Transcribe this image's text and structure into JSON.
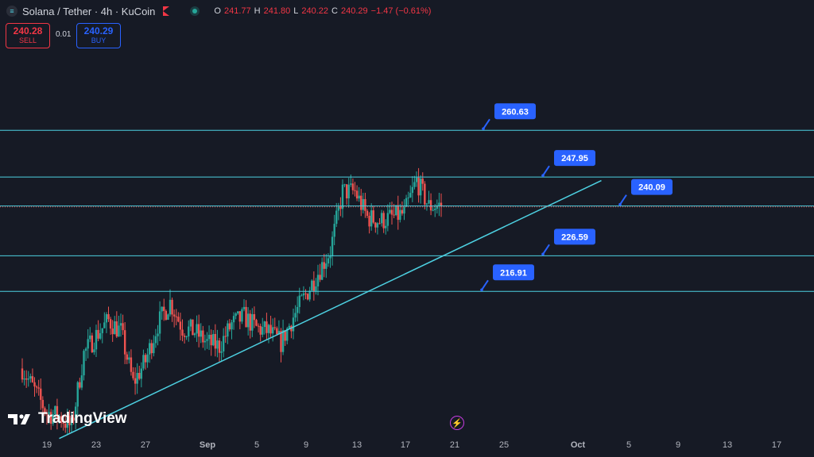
{
  "header": {
    "title": "Solana / Tether · 4h · KuCoin",
    "ohlc": {
      "o_label": "O",
      "o": "241.77",
      "h_label": "H",
      "h": "241.80",
      "l_label": "L",
      "l": "240.22",
      "c_label": "C",
      "c": "240.29",
      "change": "−1.47 (−0.61%)"
    }
  },
  "trade": {
    "sell_price": "240.28",
    "sell_label": "SELL",
    "spread": "0.01",
    "buy_price": "240.29",
    "buy_label": "BUY"
  },
  "branding": {
    "logo_text": "TradingView"
  },
  "colors": {
    "background": "#161a25",
    "up": "#26a69a",
    "down": "#ef5350",
    "level_line": "#4dd0e1",
    "label_bg": "#2962ff",
    "axis_text": "#b2b5be"
  },
  "chart_data": {
    "type": "line",
    "chart_subtype": "candlestick",
    "symbol": "Solana / Tether",
    "interval": "4h",
    "exchange": "KuCoin",
    "x_ticks": [
      "19",
      "23",
      "27",
      "Sep",
      "5",
      "9",
      "13",
      "17",
      "21",
      "25",
      "Oct",
      "5",
      "9",
      "13",
      "17"
    ],
    "ylim": [
      178,
      296
    ],
    "grid": false,
    "horizontal_levels": [
      {
        "label": "260.63",
        "value": 260.63
      },
      {
        "label": "247.95",
        "value": 247.95
      },
      {
        "label": "240.09",
        "value": 240.09
      },
      {
        "label": "226.59",
        "value": 226.59
      },
      {
        "label": "216.91",
        "value": 216.91
      }
    ],
    "trendline": {
      "start": {
        "x": "Aug 20",
        "y": 177
      },
      "end": {
        "x": "Oct 3",
        "y": 247
      }
    },
    "close_series": [
      {
        "x": "Aug 17",
        "y": 196
      },
      {
        "x": "Aug 18",
        "y": 190
      },
      {
        "x": "Aug 19",
        "y": 184
      },
      {
        "x": "Aug 20",
        "y": 183
      },
      {
        "x": "Aug 21",
        "y": 180
      },
      {
        "x": "Aug 22",
        "y": 200
      },
      {
        "x": "Aug 23",
        "y": 205
      },
      {
        "x": "Aug 24",
        "y": 209
      },
      {
        "x": "Aug 25",
        "y": 206
      },
      {
        "x": "Aug 26",
        "y": 192
      },
      {
        "x": "Aug 27",
        "y": 198
      },
      {
        "x": "Aug 28",
        "y": 208
      },
      {
        "x": "Aug 29",
        "y": 214
      },
      {
        "x": "Aug 30",
        "y": 207
      },
      {
        "x": "Aug 31",
        "y": 206
      },
      {
        "x": "Sep 1",
        "y": 203
      },
      {
        "x": "Sep 2",
        "y": 202
      },
      {
        "x": "Sep 3",
        "y": 208
      },
      {
        "x": "Sep 4",
        "y": 210
      },
      {
        "x": "Sep 5",
        "y": 207
      },
      {
        "x": "Sep 6",
        "y": 206
      },
      {
        "x": "Sep 7",
        "y": 203
      },
      {
        "x": "Sep 8",
        "y": 210
      },
      {
        "x": "Sep 9",
        "y": 216
      },
      {
        "x": "Sep 10",
        "y": 222
      },
      {
        "x": "Sep 11",
        "y": 228
      },
      {
        "x": "Sep 12",
        "y": 244
      },
      {
        "x": "Sep 13",
        "y": 244
      },
      {
        "x": "Sep 14",
        "y": 237
      },
      {
        "x": "Sep 15",
        "y": 236
      },
      {
        "x": "Sep 16",
        "y": 237
      },
      {
        "x": "Sep 17",
        "y": 238
      },
      {
        "x": "Sep 18",
        "y": 247
      },
      {
        "x": "Sep 19",
        "y": 240
      },
      {
        "x": "Sep 20",
        "y": 240.29
      }
    ]
  }
}
